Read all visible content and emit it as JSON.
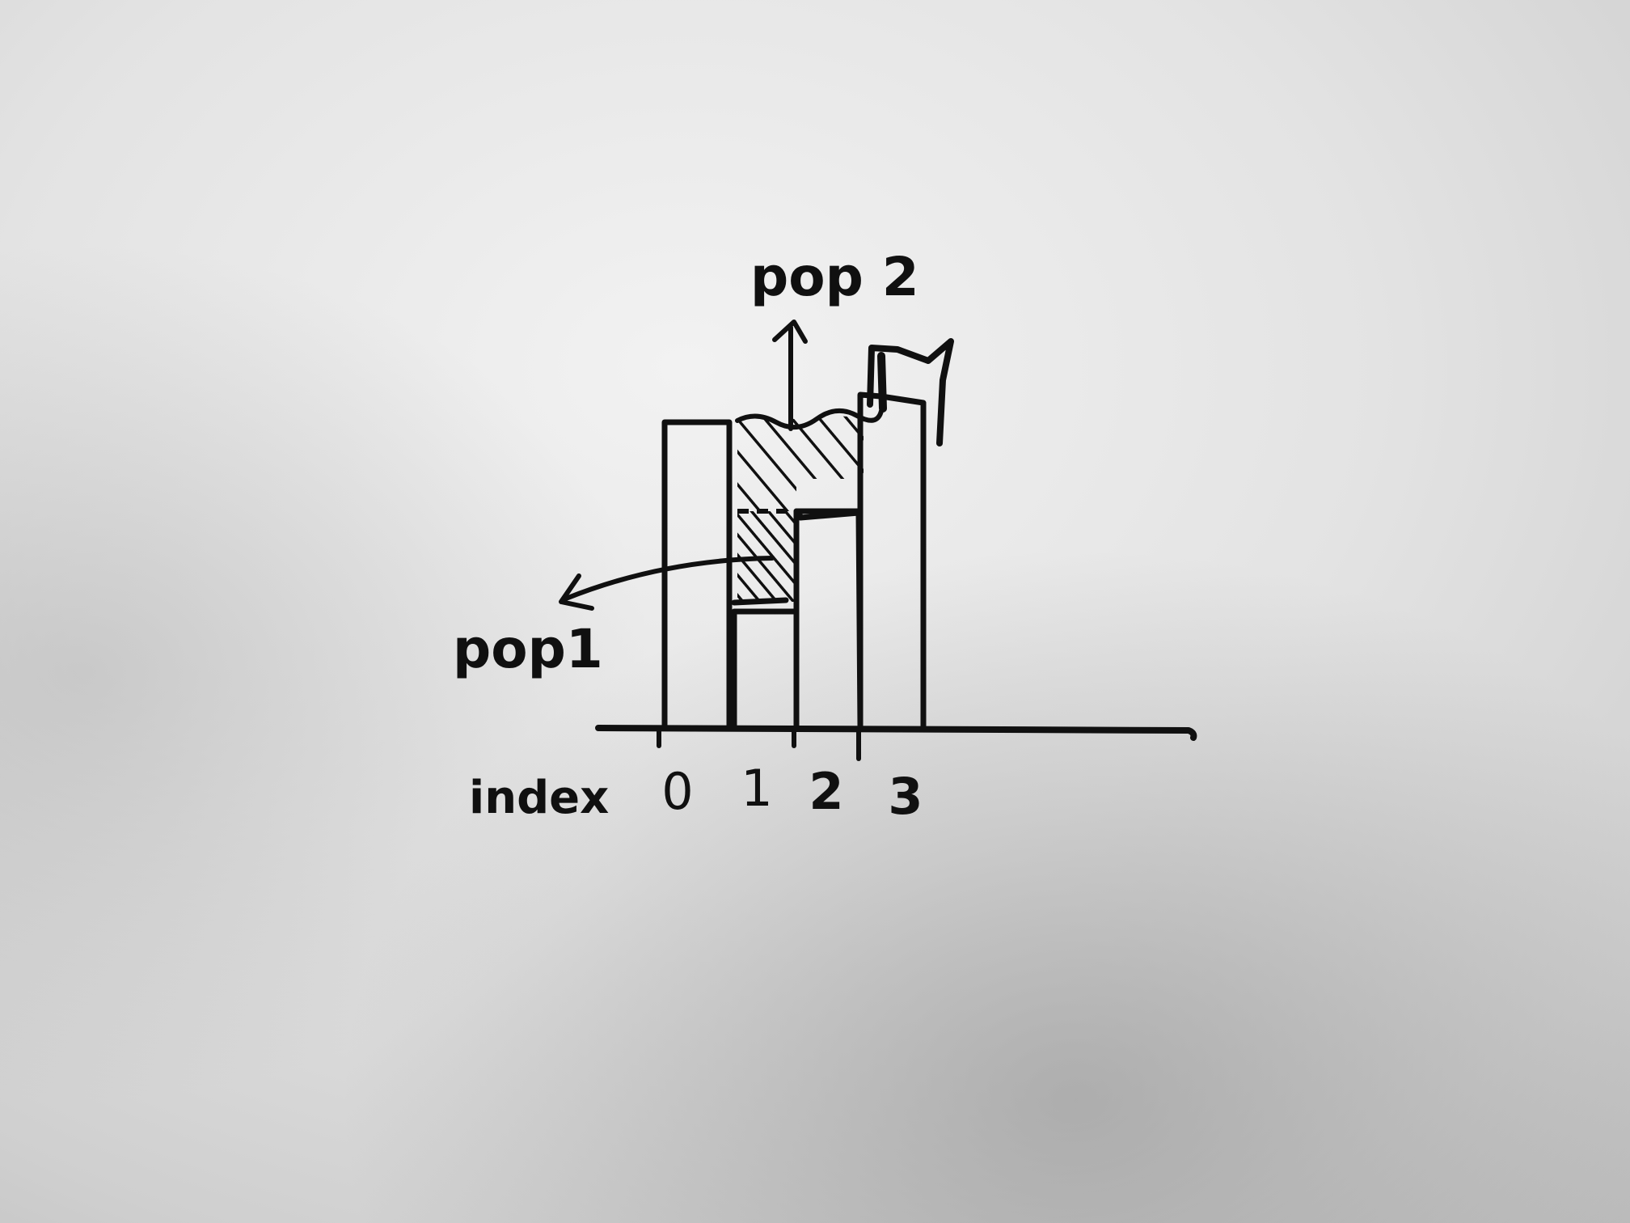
{
  "diagram": {
    "label_pop2": "pop 2",
    "label_pop1": "pop1",
    "axis_label": "index",
    "indices": [
      "0",
      "1",
      "2",
      "3"
    ],
    "heights": [
      5.0,
      1.9,
      3.3,
      6.0
    ],
    "ink_color": "#101010"
  }
}
